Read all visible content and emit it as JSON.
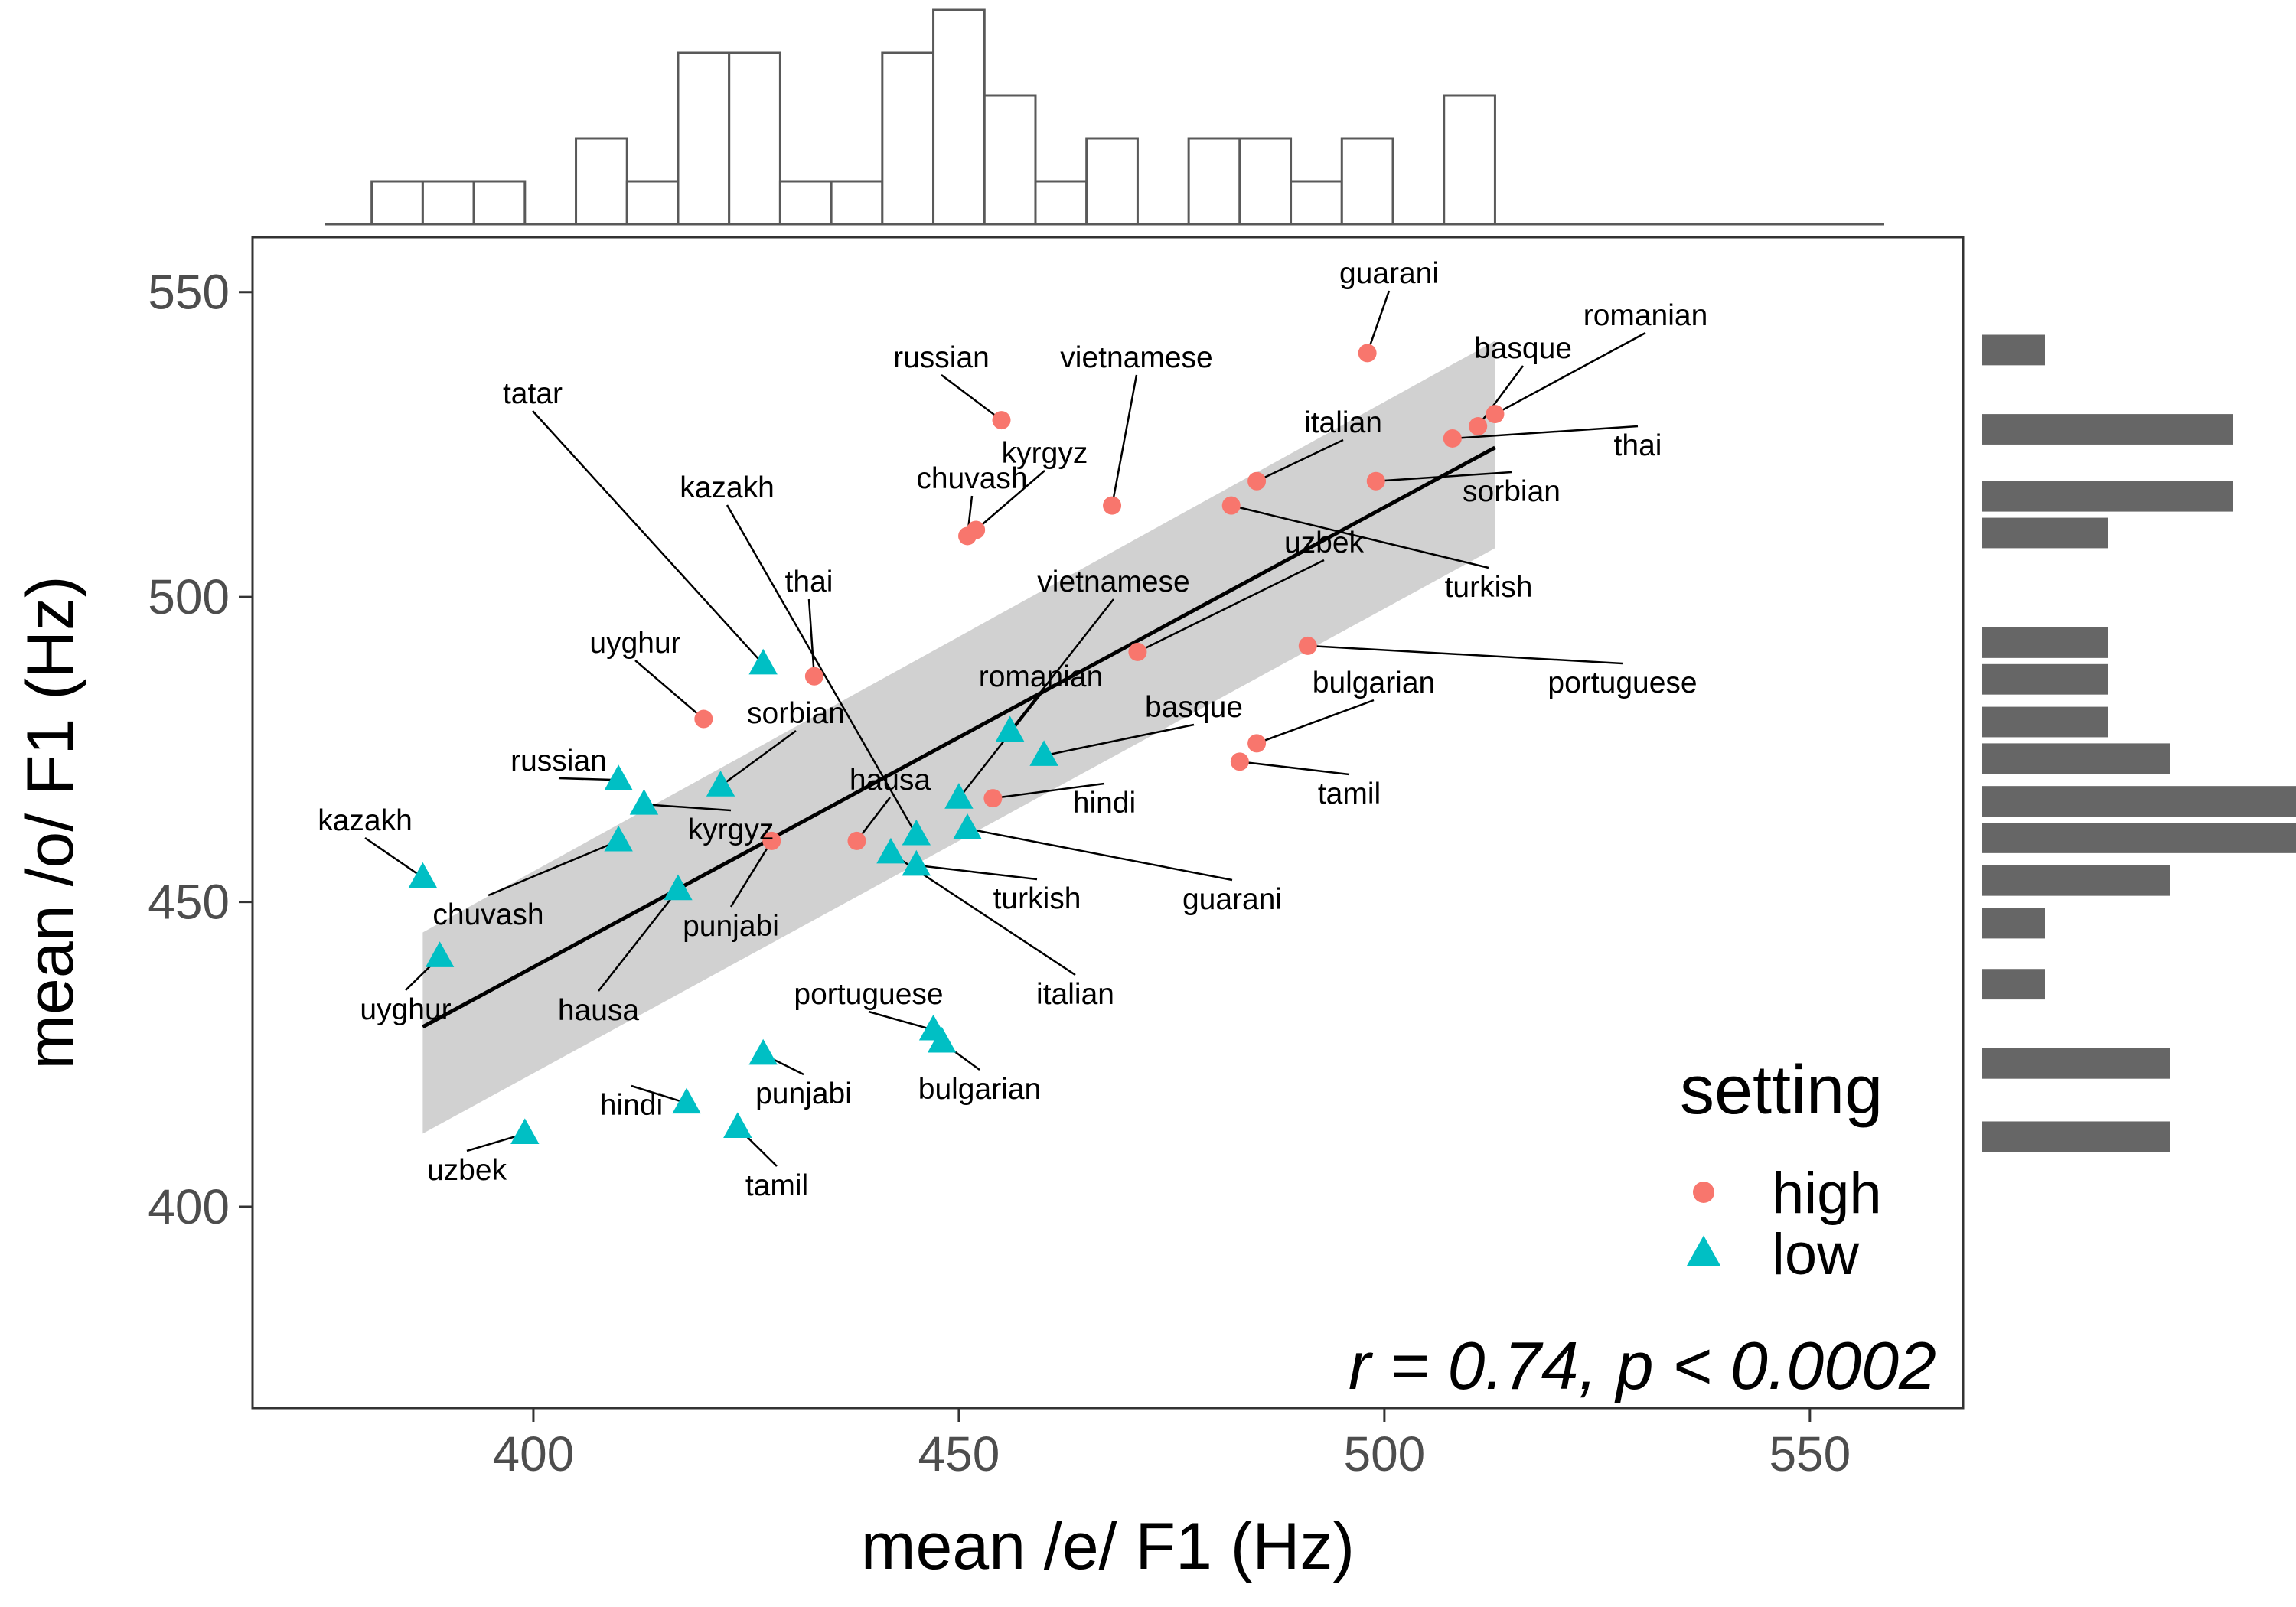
{
  "chart_data": {
    "type": "scatter",
    "xlabel": "mean /e/ F1 (Hz)",
    "ylabel": "mean /o/ F1 (Hz)",
    "xlim": [
      367,
      568
    ],
    "ylim": [
      367,
      559
    ],
    "xticks": [
      400,
      450,
      500,
      550
    ],
    "yticks": [
      400,
      450,
      500,
      550
    ],
    "grid": false,
    "annotation": "r = 0.74, p < 0.0002",
    "legend": {
      "title": "setting",
      "placement": "bottom-right",
      "entries": [
        {
          "label": "high",
          "shape": "circle",
          "color": "#F8766D"
        },
        {
          "label": "low",
          "shape": "triangle",
          "color": "#00BFC4"
        }
      ]
    },
    "series": [
      {
        "name": "high",
        "points": [
          {
            "label": "guarani",
            "x": 498,
            "y": 540
          },
          {
            "label": "romanian",
            "x": 513,
            "y": 530
          },
          {
            "label": "basque",
            "x": 511,
            "y": 528
          },
          {
            "label": "thai",
            "x": 508,
            "y": 526
          },
          {
            "label": "russian",
            "x": 455,
            "y": 529
          },
          {
            "label": "vietnamese",
            "x": 468,
            "y": 515
          },
          {
            "label": "kyrgyz",
            "x": 452,
            "y": 511
          },
          {
            "label": "chuvash",
            "x": 451,
            "y": 510
          },
          {
            "label": "italian",
            "x": 485,
            "y": 519
          },
          {
            "label": "sorbian",
            "x": 499,
            "y": 519
          },
          {
            "label": "turkish",
            "x": 482,
            "y": 515
          },
          {
            "label": "uzbek",
            "x": 471,
            "y": 491
          },
          {
            "label": "portuguese",
            "x": 491,
            "y": 492
          },
          {
            "label": "bulgarian",
            "x": 485,
            "y": 476
          },
          {
            "label": "tamil",
            "x": 483,
            "y": 473
          },
          {
            "label": "thai",
            "x": 433,
            "y": 487
          },
          {
            "label": "uyghur",
            "x": 420,
            "y": 480
          },
          {
            "label": "hindi",
            "x": 454,
            "y": 467
          },
          {
            "label": "hausa",
            "x": 438,
            "y": 460
          },
          {
            "label": "punjabi",
            "x": 428,
            "y": 460
          }
        ]
      },
      {
        "name": "low",
        "points": [
          {
            "label": "tatar",
            "x": 427,
            "y": 489
          },
          {
            "label": "sorbian",
            "x": 422,
            "y": 469
          },
          {
            "label": "vietnamese",
            "x": 456,
            "y": 478
          },
          {
            "label": "basque",
            "x": 460,
            "y": 474
          },
          {
            "label": "romanian",
            "x": 450,
            "y": 467
          },
          {
            "label": "guarani",
            "x": 451,
            "y": 462
          },
          {
            "label": "kazakh",
            "x": 445,
            "y": 461
          },
          {
            "label": "italian",
            "x": 442,
            "y": 458
          },
          {
            "label": "turkish",
            "x": 445,
            "y": 456
          },
          {
            "label": "russian",
            "x": 410,
            "y": 470
          },
          {
            "label": "kyrgyz",
            "x": 413,
            "y": 466
          },
          {
            "label": "chuvash",
            "x": 410,
            "y": 460
          },
          {
            "label": "hausa",
            "x": 417,
            "y": 452
          },
          {
            "label": "kazakh",
            "x": 387,
            "y": 454
          },
          {
            "label": "uyghur",
            "x": 389,
            "y": 441
          },
          {
            "label": "portuguese",
            "x": 447,
            "y": 429
          },
          {
            "label": "bulgarian",
            "x": 448,
            "y": 427
          },
          {
            "label": "punjabi",
            "x": 427,
            "y": 425
          },
          {
            "label": "hindi",
            "x": 418,
            "y": 417
          },
          {
            "label": "tamil",
            "x": 424,
            "y": 413
          },
          {
            "label": "uzbek",
            "x": 399,
            "y": 412
          }
        ]
      }
    ],
    "regression": {
      "x": [
        387,
        513
      ],
      "y": [
        429.5,
        524.5
      ],
      "ci_lower": [
        412,
        508
      ],
      "ci_upper": [
        445,
        542
      ],
      "line_color": "#000000",
      "band_color": "#CCCCCC"
    },
    "marginal_x_histogram": {
      "bin_width": 6,
      "bin_start": 381,
      "counts": [
        1,
        1,
        1,
        0,
        2,
        1,
        4,
        4,
        1,
        1,
        4,
        5,
        3,
        1,
        2,
        0,
        2,
        2,
        1,
        2,
        0,
        3
      ],
      "fill": "#FFFFFF",
      "stroke": "#595959"
    },
    "marginal_y_histogram": {
      "bins": [
        {
          "y0": 538,
          "y1": 543,
          "count": 1
        },
        {
          "y0": 525,
          "y1": 530,
          "count": 4
        },
        {
          "y0": 514,
          "y1": 519,
          "count": 4
        },
        {
          "y0": 508,
          "y1": 513,
          "count": 2
        },
        {
          "y0": 490,
          "y1": 495,
          "count": 2
        },
        {
          "y0": 484,
          "y1": 489,
          "count": 2
        },
        {
          "y0": 477,
          "y1": 482,
          "count": 2
        },
        {
          "y0": 471,
          "y1": 476,
          "count": 3
        },
        {
          "y0": 464,
          "y1": 469,
          "count": 5
        },
        {
          "y0": 458,
          "y1": 463,
          "count": 5
        },
        {
          "y0": 451,
          "y1": 456,
          "count": 3
        },
        {
          "y0": 444,
          "y1": 449,
          "count": 1
        },
        {
          "y0": 434,
          "y1": 439,
          "count": 1
        },
        {
          "y0": 421,
          "y1": 426,
          "count": 3
        },
        {
          "y0": 409,
          "y1": 414,
          "count": 3
        }
      ],
      "fill": "#666666"
    }
  }
}
